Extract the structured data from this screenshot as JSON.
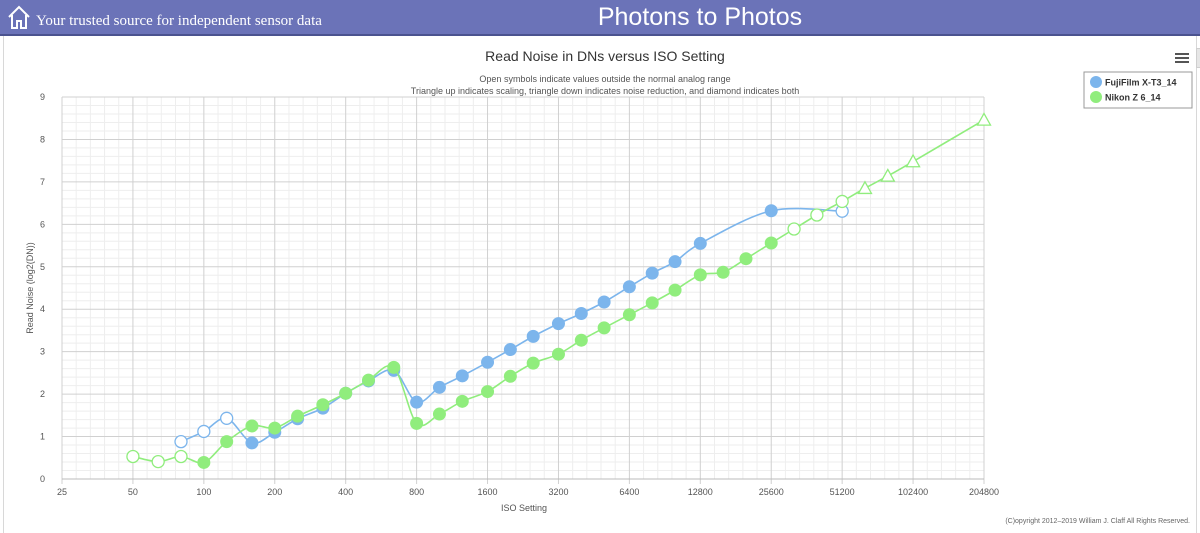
{
  "header": {
    "tagline": "Your trusted source for independent sensor data",
    "site_title": "Photons to Photos",
    "home_icon": "home-icon"
  },
  "menu_icon": "hamburger-menu-icon",
  "copyright": "(C)opyright 2012–2019 William J. Claff All Rights Reserved.",
  "colors": {
    "header_bg": "#6b73b8",
    "fuji": "#7cb5ec",
    "nikon": "#90ed7d"
  },
  "chart_data": {
    "type": "line",
    "title": "Read Noise in DNs versus ISO Setting",
    "subtitle_lines": [
      "Open symbols indicate values outside the normal analog range",
      "Triangle up indicates scaling, triangle down indicates noise reduction, and diamond indicates both"
    ],
    "xlabel": "ISO Setting",
    "ylabel": "Read Noise (log2(DN))",
    "x_scale": "log2",
    "xlim": [
      25,
      204800
    ],
    "ylim": [
      0,
      9
    ],
    "x_ticks": [
      "25",
      "50",
      "100",
      "200",
      "400",
      "800",
      "1600",
      "3200",
      "6400",
      "12800",
      "25600",
      "51200",
      "102400",
      "204800"
    ],
    "y_ticks": [
      "0",
      "1",
      "2",
      "3",
      "4",
      "5",
      "6",
      "7",
      "8",
      "9"
    ],
    "grid": true,
    "legend_position": "top-right",
    "series": [
      {
        "name": "FujiFilm X-T3_14",
        "color": "#7cb5ec",
        "points": [
          {
            "x": 80,
            "y": 0.88,
            "marker": "open-circle"
          },
          {
            "x": 100,
            "y": 1.12,
            "marker": "open-circle"
          },
          {
            "x": 125,
            "y": 1.43,
            "marker": "open-circle"
          },
          {
            "x": 160,
            "y": 0.85,
            "marker": "circle"
          },
          {
            "x": 200,
            "y": 1.1,
            "marker": "circle"
          },
          {
            "x": 250,
            "y": 1.42,
            "marker": "circle"
          },
          {
            "x": 320,
            "y": 1.67,
            "marker": "circle"
          },
          {
            "x": 400,
            "y": 2.02,
            "marker": "circle"
          },
          {
            "x": 500,
            "y": 2.31,
            "marker": "circle"
          },
          {
            "x": 640,
            "y": 2.56,
            "marker": "circle"
          },
          {
            "x": 800,
            "y": 1.81,
            "marker": "circle"
          },
          {
            "x": 1000,
            "y": 2.16,
            "marker": "circle"
          },
          {
            "x": 1250,
            "y": 2.43,
            "marker": "circle"
          },
          {
            "x": 1600,
            "y": 2.75,
            "marker": "circle"
          },
          {
            "x": 2000,
            "y": 3.05,
            "marker": "circle"
          },
          {
            "x": 2500,
            "y": 3.36,
            "marker": "circle"
          },
          {
            "x": 3200,
            "y": 3.66,
            "marker": "circle"
          },
          {
            "x": 4000,
            "y": 3.9,
            "marker": "circle"
          },
          {
            "x": 5000,
            "y": 4.17,
            "marker": "circle"
          },
          {
            "x": 6400,
            "y": 4.53,
            "marker": "circle"
          },
          {
            "x": 8000,
            "y": 4.85,
            "marker": "circle"
          },
          {
            "x": 10000,
            "y": 5.12,
            "marker": "circle"
          },
          {
            "x": 12800,
            "y": 5.55,
            "marker": "circle"
          },
          {
            "x": 25600,
            "y": 6.32,
            "marker": "circle"
          },
          {
            "x": 51200,
            "y": 6.31,
            "marker": "open-circle"
          }
        ]
      },
      {
        "name": "Nikon Z 6_14",
        "color": "#90ed7d",
        "points": [
          {
            "x": 50,
            "y": 0.53,
            "marker": "open-circle"
          },
          {
            "x": 64,
            "y": 0.41,
            "marker": "open-circle"
          },
          {
            "x": 80,
            "y": 0.53,
            "marker": "open-circle"
          },
          {
            "x": 100,
            "y": 0.39,
            "marker": "circle"
          },
          {
            "x": 125,
            "y": 0.88,
            "marker": "circle"
          },
          {
            "x": 160,
            "y": 1.25,
            "marker": "circle"
          },
          {
            "x": 200,
            "y": 1.2,
            "marker": "circle"
          },
          {
            "x": 250,
            "y": 1.48,
            "marker": "circle"
          },
          {
            "x": 320,
            "y": 1.75,
            "marker": "circle"
          },
          {
            "x": 400,
            "y": 2.02,
            "marker": "circle"
          },
          {
            "x": 500,
            "y": 2.33,
            "marker": "circle"
          },
          {
            "x": 640,
            "y": 2.63,
            "marker": "circle"
          },
          {
            "x": 800,
            "y": 1.31,
            "marker": "circle"
          },
          {
            "x": 1000,
            "y": 1.53,
            "marker": "circle"
          },
          {
            "x": 1250,
            "y": 1.83,
            "marker": "circle"
          },
          {
            "x": 1600,
            "y": 2.06,
            "marker": "circle"
          },
          {
            "x": 2000,
            "y": 2.42,
            "marker": "circle"
          },
          {
            "x": 2500,
            "y": 2.73,
            "marker": "circle"
          },
          {
            "x": 3200,
            "y": 2.94,
            "marker": "circle"
          },
          {
            "x": 4000,
            "y": 3.27,
            "marker": "circle"
          },
          {
            "x": 5000,
            "y": 3.56,
            "marker": "circle"
          },
          {
            "x": 6400,
            "y": 3.87,
            "marker": "circle"
          },
          {
            "x": 8000,
            "y": 4.15,
            "marker": "circle"
          },
          {
            "x": 10000,
            "y": 4.45,
            "marker": "circle"
          },
          {
            "x": 12800,
            "y": 4.81,
            "marker": "circle"
          },
          {
            "x": 16000,
            "y": 4.87,
            "marker": "circle"
          },
          {
            "x": 20000,
            "y": 5.19,
            "marker": "circle"
          },
          {
            "x": 25600,
            "y": 5.56,
            "marker": "circle"
          },
          {
            "x": 32000,
            "y": 5.89,
            "marker": "open-circle"
          },
          {
            "x": 40000,
            "y": 6.22,
            "marker": "open-circle"
          },
          {
            "x": 51200,
            "y": 6.54,
            "marker": "open-circle"
          },
          {
            "x": 64000,
            "y": 6.85,
            "marker": "open-triangle-up"
          },
          {
            "x": 80000,
            "y": 7.14,
            "marker": "open-triangle-up"
          },
          {
            "x": 102400,
            "y": 7.48,
            "marker": "open-triangle-up"
          },
          {
            "x": 204800,
            "y": 8.46,
            "marker": "open-triangle-up"
          }
        ]
      }
    ]
  }
}
